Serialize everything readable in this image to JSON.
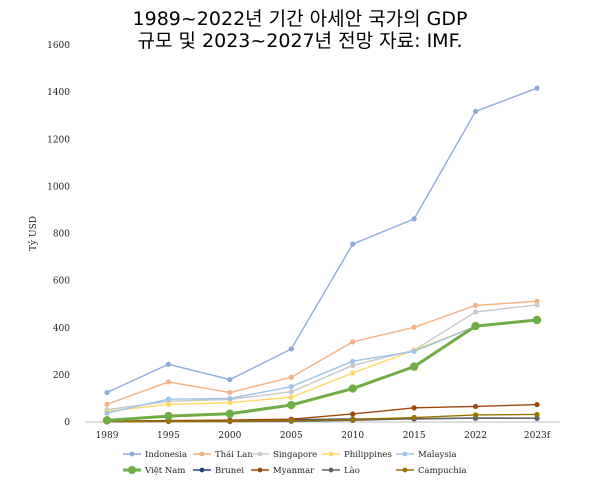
{
  "chart_data": {
    "type": "line",
    "title_line1": "1989~2022년 기간 아세안 국가의 GDP",
    "title_line2": "규모 및 2023~2027년 전망 자료: IMF.",
    "ylabel": "Tỷ USD",
    "ylim": [
      0,
      1600
    ],
    "yticks": [
      "0",
      "200",
      "400",
      "600",
      "800",
      "1000",
      "1200",
      "1400",
      "1600"
    ],
    "categories": [
      "1989",
      "1995",
      "2000",
      "2005",
      "2010",
      "2015",
      "2022",
      "2023f"
    ],
    "grid": false,
    "legend_position": "bottom",
    "series": [
      {
        "name": "Indonesia",
        "color": "#8faadc",
        "values": [
          125,
          245,
          180,
          310,
          755,
          862,
          1318,
          1417
        ]
      },
      {
        "name": "Thái Lan",
        "color": "#f4b183",
        "values": [
          75,
          170,
          125,
          190,
          340,
          402,
          495,
          512
        ]
      },
      {
        "name": "Singapore",
        "color": "#c9c9c9",
        "values": [
          52,
          88,
          96,
          128,
          240,
          305,
          467,
          497
        ]
      },
      {
        "name": "Philippines",
        "color": "#ffd966",
        "values": [
          45,
          75,
          82,
          105,
          208,
          305,
          405,
          437
        ]
      },
      {
        "name": "Malaysia",
        "color": "#9dc3e6",
        "values": [
          38,
          97,
          100,
          150,
          258,
          300,
          406,
          437
        ]
      },
      {
        "name": "Việt Nam",
        "color": "#70ad47",
        "values": [
          7,
          25,
          35,
          72,
          142,
          235,
          407,
          433
        ],
        "highlight": true
      },
      {
        "name": "Brunei",
        "color": "#264478",
        "values": [
          3,
          5,
          6,
          10,
          13,
          13,
          17,
          16
        ]
      },
      {
        "name": "Myanmar",
        "color": "#9e480e",
        "values": [
          4,
          6,
          8,
          12,
          34,
          60,
          66,
          74
        ]
      },
      {
        "name": "Lào",
        "color": "#636363",
        "values": [
          1,
          2,
          2,
          3,
          7,
          14,
          16,
          16
        ]
      },
      {
        "name": "Campuchia",
        "color": "#997300",
        "values": [
          2,
          3,
          4,
          6,
          11,
          19,
          30,
          32
        ]
      }
    ]
  }
}
